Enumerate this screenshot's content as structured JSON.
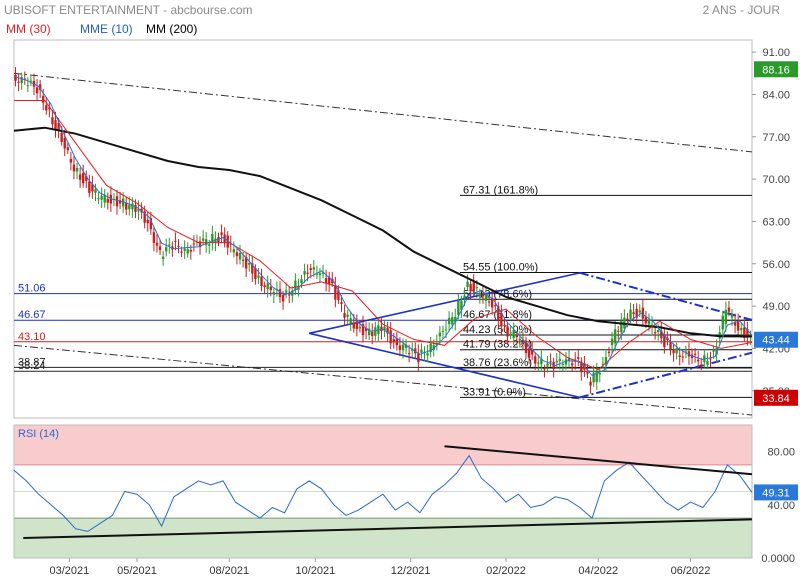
{
  "header": {
    "title": "UBISOFT ENTERTAINMENT - abcbourse.com",
    "period": "2 ANS - JOUR"
  },
  "legend": [
    {
      "label": "MM (30)",
      "color": "#e02020"
    },
    {
      "label": "MME (10)",
      "color": "#2060c0"
    },
    {
      "label": "MM (200)",
      "color": "#000000"
    }
  ],
  "rsi_label": "RSI (14)",
  "colors": {
    "price_up": "#2a9a2a",
    "price_down": "#c82020",
    "mm30": "#e02020",
    "mme10": "#3070d0",
    "mm200": "#111111",
    "pattern": "#1a2fd0",
    "hline": "#1a2fd0",
    "rsi_line": "#2a6ad0",
    "rsi_overbought": "#f8cccc",
    "rsi_oversold": "#cfe4c8",
    "last_price_badge": "#2a78d8",
    "low_badge": "#cc0000",
    "high_badge": "#2a9a2a",
    "rsi_badge": "#2a78d8"
  },
  "chart_data": [
    {
      "type": "line",
      "name": "price",
      "x_ticks": [
        "03/2021",
        "05/2021",
        "08/2021",
        "10/2021",
        "12/2021",
        "02/2022",
        "04/2022",
        "06/2022"
      ],
      "y_ticks": [
        35.0,
        42.0,
        49.0,
        56.0,
        63.0,
        70.0,
        77.0,
        84.0,
        91.0
      ],
      "ylim": [
        30.5,
        93
      ],
      "x_range_months": [
        0,
        24
      ],
      "close": [
        [
          0,
          87.0
        ],
        [
          0.4,
          86.0
        ],
        [
          0.8,
          85.0
        ],
        [
          1.2,
          81.0
        ],
        [
          1.6,
          76.0
        ],
        [
          2.0,
          72.0
        ],
        [
          2.4,
          69.0
        ],
        [
          2.8,
          67.0
        ],
        [
          3.2,
          66.5
        ],
        [
          3.6,
          66.0
        ],
        [
          4.0,
          65.0
        ],
        [
          4.4,
          63.0
        ],
        [
          4.8,
          57.5
        ],
        [
          5.2,
          59.0
        ],
        [
          5.6,
          58.5
        ],
        [
          6.0,
          59.0
        ],
        [
          6.4,
          60.0
        ],
        [
          6.8,
          60.5
        ],
        [
          7.2,
          58.0
        ],
        [
          7.6,
          56.0
        ],
        [
          8.0,
          53.5
        ],
        [
          8.4,
          51.5
        ],
        [
          8.8,
          50.5
        ],
        [
          9.2,
          52.5
        ],
        [
          9.6,
          54.5
        ],
        [
          10.0,
          55.0
        ],
        [
          10.4,
          52.0
        ],
        [
          10.8,
          47.5
        ],
        [
          11.2,
          45.5
        ],
        [
          11.6,
          44.5
        ],
        [
          12.0,
          45.5
        ],
        [
          12.4,
          43.0
        ],
        [
          12.8,
          42.0
        ],
        [
          13.2,
          40.5
        ],
        [
          13.6,
          42.5
        ],
        [
          14.0,
          44.5
        ],
        [
          14.4,
          48.0
        ],
        [
          14.8,
          52.5
        ],
        [
          15.2,
          51.0
        ],
        [
          15.6,
          49.5
        ],
        [
          16.0,
          45.0
        ],
        [
          16.4,
          44.0
        ],
        [
          16.8,
          41.0
        ],
        [
          17.2,
          39.5
        ],
        [
          17.6,
          39.0
        ],
        [
          18.0,
          40.5
        ],
        [
          18.4,
          39.5
        ],
        [
          18.8,
          36.5
        ],
        [
          19.2,
          39.5
        ],
        [
          19.6,
          44.5
        ],
        [
          20.0,
          47.5
        ],
        [
          20.4,
          48.0
        ],
        [
          20.8,
          45.5
        ],
        [
          21.2,
          43.0
        ],
        [
          21.6,
          41.5
        ],
        [
          22.0,
          40.5
        ],
        [
          22.4,
          40.0
        ],
        [
          22.8,
          41.0
        ],
        [
          23.2,
          48.5
        ],
        [
          23.6,
          45.5
        ],
        [
          24.0,
          43.44
        ]
      ],
      "mm30": [
        [
          0,
          83.0
        ],
        [
          1.0,
          83.0
        ],
        [
          2.0,
          76.0
        ],
        [
          3.0,
          69.0
        ],
        [
          4.0,
          66.0
        ],
        [
          5.0,
          62.0
        ],
        [
          6.0,
          59.5
        ],
        [
          7.0,
          59.5
        ],
        [
          8.0,
          56.5
        ],
        [
          9.0,
          52.0
        ],
        [
          10.0,
          53.0
        ],
        [
          11.0,
          51.5
        ],
        [
          12.0,
          46.0
        ],
        [
          13.0,
          43.5
        ],
        [
          14.0,
          42.5
        ],
        [
          15.0,
          47.0
        ],
        [
          16.0,
          48.5
        ],
        [
          17.0,
          44.0
        ],
        [
          18.0,
          40.5
        ],
        [
          19.0,
          38.5
        ],
        [
          20.0,
          43.0
        ],
        [
          21.0,
          46.5
        ],
        [
          22.0,
          43.5
        ],
        [
          23.0,
          42.0
        ],
        [
          24.0,
          43.0
        ]
      ],
      "mm200": [
        [
          0,
          78.0
        ],
        [
          1.0,
          78.5
        ],
        [
          2.0,
          77.5
        ],
        [
          3.0,
          76.0
        ],
        [
          4.0,
          74.5
        ],
        [
          5.0,
          73.0
        ],
        [
          6.0,
          72.0
        ],
        [
          7.0,
          71.5
        ],
        [
          8.0,
          70.5
        ],
        [
          9.0,
          68.5
        ],
        [
          10.0,
          66.5
        ],
        [
          11.0,
          64.0
        ],
        [
          12.0,
          61.5
        ],
        [
          13.0,
          58.0
        ],
        [
          14.0,
          55.5
        ],
        [
          15.0,
          53.0
        ],
        [
          16.0,
          50.5
        ],
        [
          17.0,
          49.0
        ],
        [
          18.0,
          47.5
        ],
        [
          19.0,
          46.5
        ],
        [
          20.0,
          46.0
        ],
        [
          21.0,
          45.5
        ],
        [
          22.0,
          44.5
        ],
        [
          23.0,
          44.0
        ],
        [
          24.0,
          44.0
        ]
      ],
      "hlines": [
        {
          "label": "51.06",
          "value": 51.06
        },
        {
          "label": "46.67",
          "value": 46.67
        },
        {
          "label": "43.10",
          "value": 43.1
        },
        {
          "label": "38.87",
          "value": 38.87
        },
        {
          "label": "38.24",
          "value": 38.24
        }
      ],
      "fibonacci": [
        {
          "label": "67.31  (161.8%)",
          "value": 67.31
        },
        {
          "label": "54.55  (100.0%)",
          "value": 54.55
        },
        {
          "label": "50.13  (78.6%)",
          "value": 50.13
        },
        {
          "label": "46.67  (61.8%)",
          "value": 46.67
        },
        {
          "label": "44.23  (50.0%)",
          "value": 44.23
        },
        {
          "label": "41.79  (38.2%)",
          "value": 41.79
        },
        {
          "label": "38.76  (23.6%)",
          "value": 38.76
        },
        {
          "label": "33.91  (0.0%)",
          "value": 33.91
        }
      ],
      "badges": [
        {
          "label": "88.16",
          "value": 88.16,
          "kind": "high"
        },
        {
          "label": "43.44",
          "value": 43.44,
          "kind": "last"
        },
        {
          "label": "33.84",
          "value": 33.84,
          "kind": "low"
        }
      ]
    },
    {
      "type": "line",
      "name": "RSI (14)",
      "y_ticks": [
        0.0,
        40.0,
        80.0
      ],
      "y_tick_labels": [
        "0.0000",
        "40.00",
        "80.00"
      ],
      "ylim": [
        0,
        100
      ],
      "overbought": 70,
      "oversold": 30,
      "values": [
        [
          0,
          66
        ],
        [
          0.4,
          58
        ],
        [
          0.8,
          48
        ],
        [
          1.2,
          40
        ],
        [
          1.6,
          32
        ],
        [
          2.0,
          22
        ],
        [
          2.4,
          20
        ],
        [
          2.8,
          26
        ],
        [
          3.2,
          32
        ],
        [
          3.6,
          50
        ],
        [
          4.0,
          48
        ],
        [
          4.4,
          40
        ],
        [
          4.8,
          24
        ],
        [
          5.2,
          46
        ],
        [
          5.6,
          52
        ],
        [
          6.0,
          58
        ],
        [
          6.4,
          55
        ],
        [
          6.8,
          58
        ],
        [
          7.2,
          42
        ],
        [
          7.6,
          36
        ],
        [
          8.0,
          30
        ],
        [
          8.4,
          38
        ],
        [
          8.8,
          34
        ],
        [
          9.2,
          52
        ],
        [
          9.6,
          58
        ],
        [
          10.0,
          52
        ],
        [
          10.4,
          40
        ],
        [
          10.8,
          32
        ],
        [
          11.2,
          36
        ],
        [
          11.6,
          42
        ],
        [
          12.0,
          48
        ],
        [
          12.4,
          36
        ],
        [
          12.8,
          42
        ],
        [
          13.2,
          34
        ],
        [
          13.6,
          48
        ],
        [
          14.0,
          55
        ],
        [
          14.4,
          64
        ],
        [
          14.8,
          77
        ],
        [
          15.2,
          60
        ],
        [
          15.6,
          52
        ],
        [
          16.0,
          42
        ],
        [
          16.4,
          48
        ],
        [
          16.8,
          38
        ],
        [
          17.2,
          40
        ],
        [
          17.6,
          46
        ],
        [
          18.0,
          44
        ],
        [
          18.4,
          38
        ],
        [
          18.8,
          30
        ],
        [
          19.2,
          58
        ],
        [
          19.6,
          66
        ],
        [
          20.0,
          72
        ],
        [
          20.4,
          62
        ],
        [
          20.8,
          52
        ],
        [
          21.2,
          42
        ],
        [
          21.6,
          36
        ],
        [
          22.0,
          42
        ],
        [
          22.4,
          38
        ],
        [
          22.8,
          50
        ],
        [
          23.2,
          70
        ],
        [
          23.6,
          62
        ],
        [
          24.0,
          49.31
        ]
      ],
      "badge": {
        "label": "49.31",
        "value": 49.31
      }
    }
  ]
}
